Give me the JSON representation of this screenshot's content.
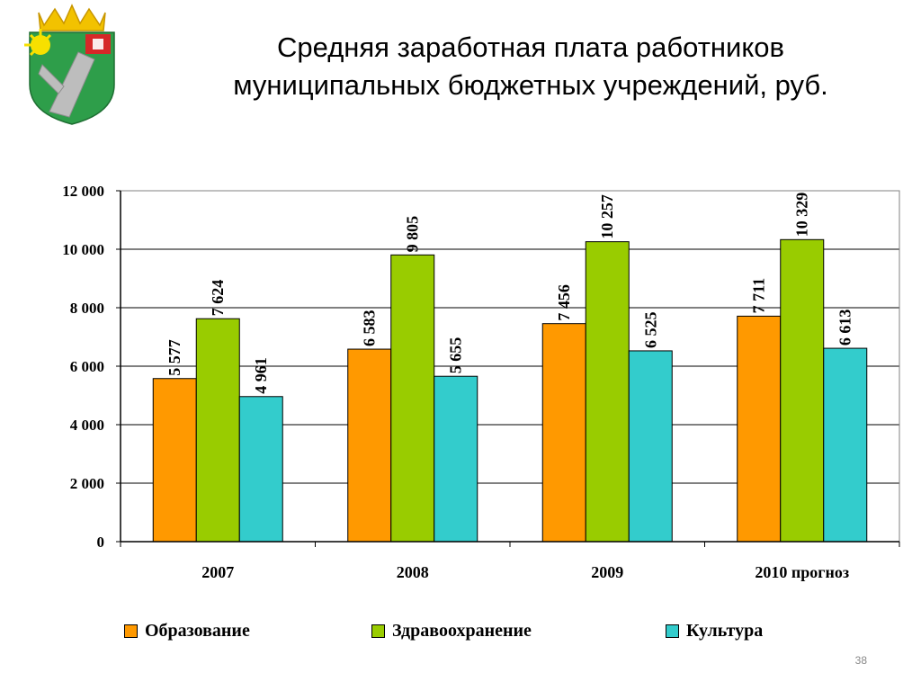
{
  "title": {
    "line1": "Средняя заработная плата работников",
    "line2": "муниципальных бюджетных учреждений, руб."
  },
  "emblem": {
    "icon": "coat-of-arms-icon"
  },
  "page_number": "38",
  "colors": {
    "education": "#FF9900",
    "health": "#99CC00",
    "culture": "#33CCCC",
    "axis": "#000000",
    "gridline": "#000000"
  },
  "chart_data": {
    "type": "bar",
    "title": "",
    "xlabel": "",
    "ylabel": "",
    "categories": [
      "2007",
      "2008",
      "2009",
      "2010 прогноз"
    ],
    "series": [
      {
        "name": "Образование",
        "values": [
          5577,
          6583,
          7456,
          7711
        ],
        "labels": [
          "5 577",
          "6 583",
          "7 456",
          "7 711"
        ]
      },
      {
        "name": "Здравоохранение",
        "values": [
          7624,
          9805,
          10257,
          10329
        ],
        "labels": [
          "7 624",
          "9 805",
          "10 257",
          "10 329"
        ]
      },
      {
        "name": "Культура",
        "values": [
          4961,
          5655,
          6525,
          6613
        ],
        "labels": [
          "4 961",
          "5 655",
          "6 525",
          "6 613"
        ]
      }
    ],
    "ylim": [
      0,
      12000
    ],
    "yticks": [
      0,
      2000,
      4000,
      6000,
      8000,
      10000,
      12000
    ],
    "ytick_labels": [
      "0",
      "2 000",
      "4 000",
      "6 000",
      "8 000",
      "10 000",
      "12 000"
    ],
    "grid": true,
    "legend_position": "bottom"
  }
}
